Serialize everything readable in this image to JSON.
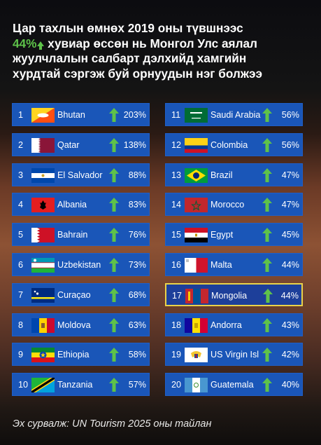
{
  "headline": {
    "line1": "Цар тахлын өмнөх 2019 оны түвшнээс",
    "line2_pct": "44%",
    "line2_rest": " хувиар өссөн нь Монгол Улс аялал",
    "line3": "жуулчлалын салбарт дэлхийд хамгийн",
    "line4": "хурдтай сэргэж буй орнуудын нэг болжээ"
  },
  "colors": {
    "accent": "#5ec24a",
    "row_bg": "#1a56b8",
    "highlight_border": "#e9d24a"
  },
  "left": [
    {
      "rank": "1",
      "country": "Bhutan",
      "pct": "203%",
      "flag": "bhutan"
    },
    {
      "rank": "2",
      "country": "Qatar",
      "pct": "138%",
      "flag": "qatar"
    },
    {
      "rank": "3",
      "country": "El Salvador",
      "pct": "88%",
      "flag": "elsalvador"
    },
    {
      "rank": "4",
      "country": "Albania",
      "pct": "83%",
      "flag": "albania"
    },
    {
      "rank": "5",
      "country": "Bahrain",
      "pct": "76%",
      "flag": "bahrain"
    },
    {
      "rank": "6",
      "country": "Uzbekistan",
      "pct": "73%",
      "flag": "uzbekistan"
    },
    {
      "rank": "7",
      "country": "Curaçao",
      "pct": "68%",
      "flag": "curacao"
    },
    {
      "rank": "8",
      "country": "Moldova",
      "pct": "63%",
      "flag": "moldova"
    },
    {
      "rank": "9",
      "country": "Ethiopia",
      "pct": "58%",
      "flag": "ethiopia"
    },
    {
      "rank": "10",
      "country": "Tanzania",
      "pct": "57%",
      "flag": "tanzania"
    }
  ],
  "right": [
    {
      "rank": "11",
      "country": "Saudi Arabia",
      "pct": "56%",
      "flag": "saudi"
    },
    {
      "rank": "12",
      "country": "Colombia",
      "pct": "56%",
      "flag": "colombia"
    },
    {
      "rank": "13",
      "country": "Brazil",
      "pct": "47%",
      "flag": "brazil"
    },
    {
      "rank": "14",
      "country": "Morocco",
      "pct": "47%",
      "flag": "morocco"
    },
    {
      "rank": "15",
      "country": "Egypt",
      "pct": "45%",
      "flag": "egypt"
    },
    {
      "rank": "16",
      "country": "Malta",
      "pct": "44%",
      "flag": "malta"
    },
    {
      "rank": "17",
      "country": "Mongolia",
      "pct": "44%",
      "flag": "mongolia",
      "highlight": true
    },
    {
      "rank": "18",
      "country": "Andorra",
      "pct": "43%",
      "flag": "andorra"
    },
    {
      "rank": "19",
      "country": "US Virgin Isl",
      "pct": "42%",
      "flag": "usvi"
    },
    {
      "rank": "20",
      "country": "Guatemala",
      "pct": "40%",
      "flag": "guatemala"
    }
  ],
  "footer": "Эх сурвалж: UN Tourism 2025 оны тайлан"
}
